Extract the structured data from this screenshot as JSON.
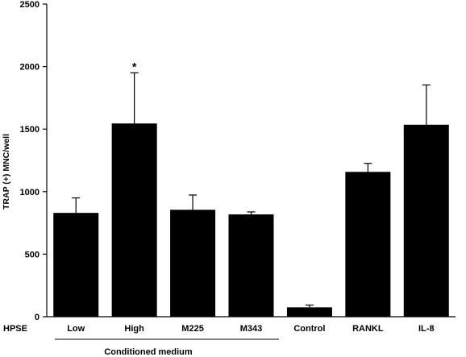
{
  "chart_data": {
    "type": "bar",
    "title": "",
    "xlabel": "",
    "ylabel": "TRAP (+) MNC/well",
    "ylim": [
      0,
      2500
    ],
    "yticks": [
      0,
      500,
      1000,
      1500,
      2000,
      2500
    ],
    "row_label": "HPSE",
    "categories": [
      "Low",
      "High",
      "M225",
      "M343",
      "Control",
      "RANKL",
      "IL-8"
    ],
    "values": [
      830,
      1545,
      855,
      818,
      75,
      1158,
      1535
    ],
    "errors": [
      120,
      405,
      118,
      20,
      18,
      68,
      318
    ],
    "annotations": [
      {
        "category": "High",
        "text": "*"
      }
    ],
    "group_label": {
      "text": "Conditioned medium",
      "categories": [
        "Low",
        "High",
        "M225",
        "M343"
      ]
    },
    "bar_color": "#000000",
    "grid": false,
    "legend": "none"
  }
}
